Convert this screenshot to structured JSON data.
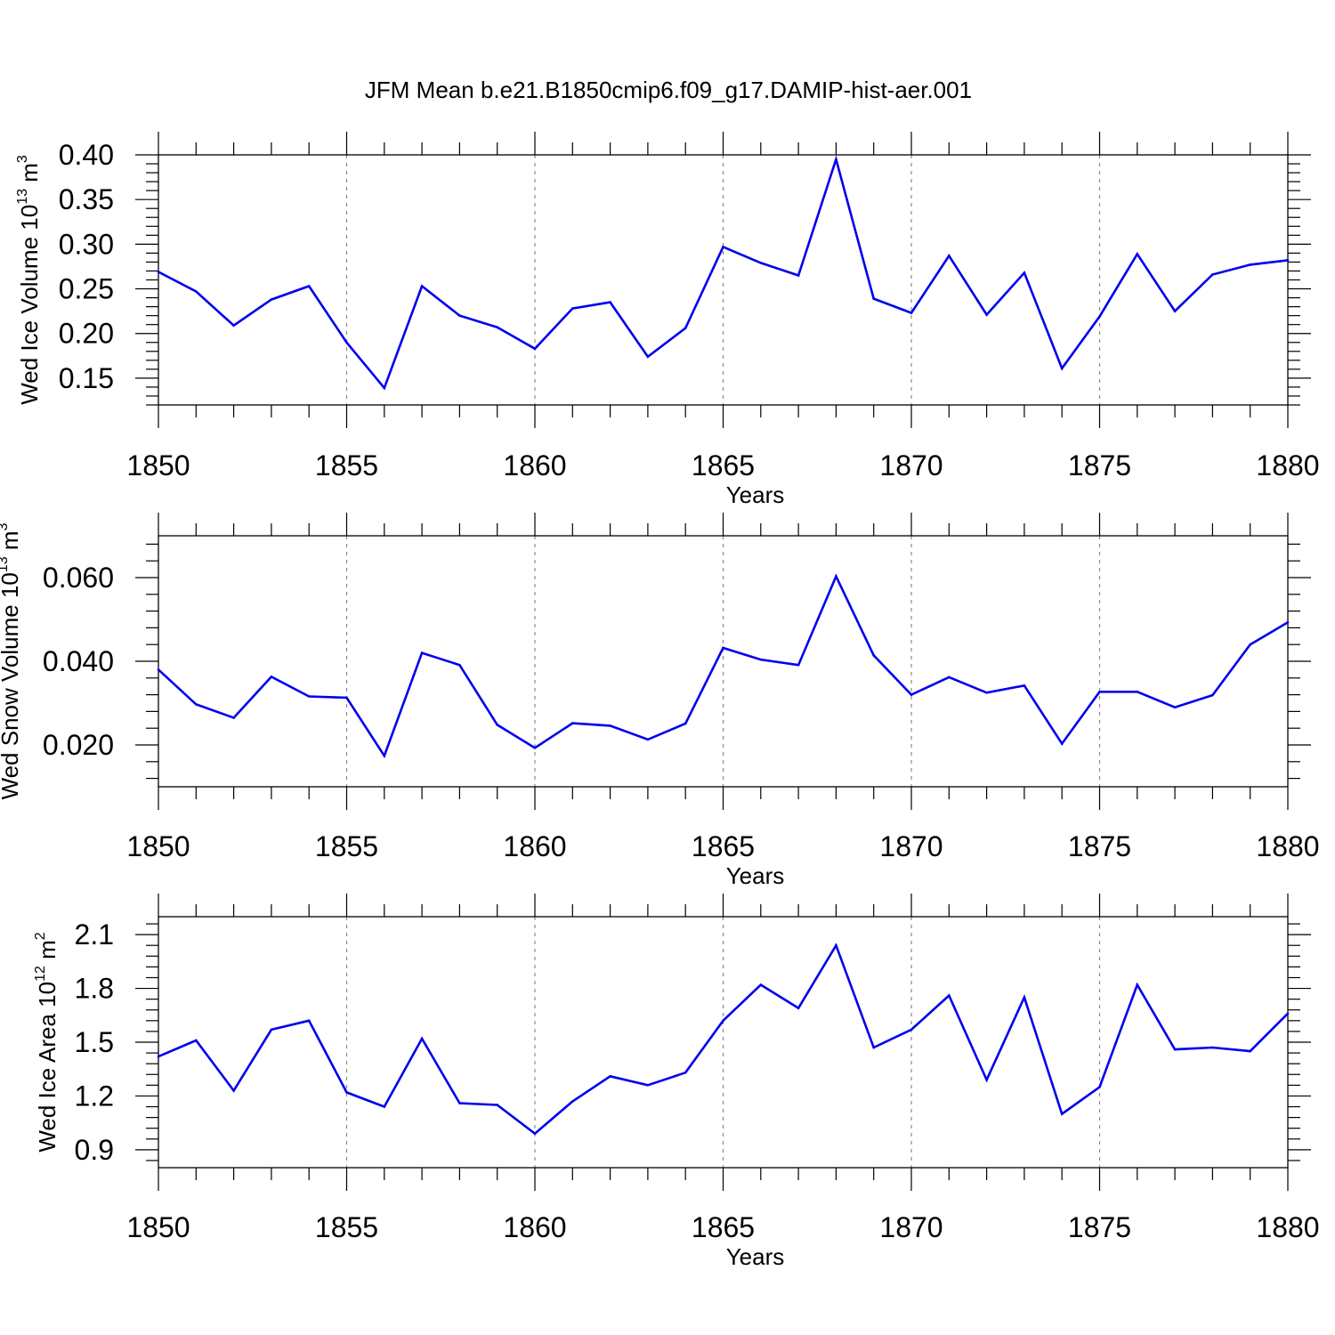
{
  "figure": {
    "title": "JFM Mean b.e21.B1850cmip6.f09_g17.DAMIP-hist-aer.001"
  },
  "chart_data": [
    {
      "type": "line",
      "xlabel": "Years",
      "ylabel_main": "Wed Ice Volume 10",
      "ylabel_sup1": "13",
      "ylabel_unit": " m",
      "ylabel_sup2": "3",
      "xlim": [
        1850,
        1880
      ],
      "ylim": [
        0.12,
        0.4
      ],
      "xticks": [
        1850,
        1855,
        1860,
        1865,
        1870,
        1875,
        1880
      ],
      "yticks": [
        0.15,
        0.2,
        0.25,
        0.3,
        0.35,
        0.4
      ],
      "ytick_labels": [
        "0.15",
        "0.20",
        "0.25",
        "0.30",
        "0.35",
        "0.40"
      ],
      "grid": "vertical dashed at major x ticks",
      "line_color": "#0000ee",
      "x": [
        1850,
        1851,
        1852,
        1853,
        1854,
        1855,
        1856,
        1857,
        1858,
        1859,
        1860,
        1861,
        1862,
        1863,
        1864,
        1865,
        1866,
        1867,
        1868,
        1869,
        1870,
        1871,
        1872,
        1873,
        1874,
        1875,
        1876,
        1877,
        1878,
        1879,
        1880
      ],
      "y": [
        0.269,
        0.247,
        0.209,
        0.238,
        0.253,
        0.19,
        0.139,
        0.253,
        0.22,
        0.207,
        0.183,
        0.228,
        0.235,
        0.174,
        0.206,
        0.297,
        0.279,
        0.265,
        0.395,
        0.239,
        0.223,
        0.287,
        0.221,
        0.268,
        0.161,
        0.219,
        0.289,
        0.225,
        0.266,
        0.277,
        0.282
      ]
    },
    {
      "type": "line",
      "xlabel": "Years",
      "ylabel_main": "Wed Snow Volume 10",
      "ylabel_sup1": "13",
      "ylabel_unit": " m",
      "ylabel_sup2": "3",
      "xlim": [
        1850,
        1880
      ],
      "ylim": [
        0.01,
        0.07
      ],
      "xticks": [
        1850,
        1855,
        1860,
        1865,
        1870,
        1875,
        1880
      ],
      "yticks": [
        0.02,
        0.04,
        0.06
      ],
      "ytick_labels": [
        "0.020",
        "0.040",
        "0.060"
      ],
      "grid": "vertical dashed at major x ticks",
      "line_color": "#0000ee",
      "x": [
        1850,
        1851,
        1852,
        1853,
        1854,
        1855,
        1856,
        1857,
        1858,
        1859,
        1860,
        1861,
        1862,
        1863,
        1864,
        1865,
        1866,
        1867,
        1868,
        1869,
        1870,
        1871,
        1872,
        1873,
        1874,
        1875,
        1876,
        1877,
        1878,
        1879,
        1880
      ],
      "y": [
        0.038,
        0.0297,
        0.0265,
        0.0363,
        0.0316,
        0.0313,
        0.0174,
        0.042,
        0.0391,
        0.0248,
        0.0193,
        0.0252,
        0.0246,
        0.0213,
        0.0251,
        0.0432,
        0.0404,
        0.0391,
        0.0603,
        0.0414,
        0.032,
        0.0362,
        0.0325,
        0.0342,
        0.0203,
        0.0327,
        0.0327,
        0.029,
        0.0319,
        0.044,
        0.0493
      ]
    },
    {
      "type": "line",
      "xlabel": "Years",
      "ylabel_main": "Wed Ice Area 10",
      "ylabel_sup1": "12",
      "ylabel_unit": " m",
      "ylabel_sup2": "2",
      "xlim": [
        1850,
        1880
      ],
      "ylim": [
        0.8,
        2.2
      ],
      "xticks": [
        1850,
        1855,
        1860,
        1865,
        1870,
        1875,
        1880
      ],
      "yticks": [
        0.9,
        1.2,
        1.5,
        1.8,
        2.1
      ],
      "ytick_labels": [
        "0.9",
        "1.2",
        "1.5",
        "1.8",
        "2.1"
      ],
      "grid": "vertical dashed at major x ticks",
      "line_color": "#0000ee",
      "x": [
        1850,
        1851,
        1852,
        1853,
        1854,
        1855,
        1856,
        1857,
        1858,
        1859,
        1860,
        1861,
        1862,
        1863,
        1864,
        1865,
        1866,
        1867,
        1868,
        1869,
        1870,
        1871,
        1872,
        1873,
        1874,
        1875,
        1876,
        1877,
        1878,
        1879,
        1880
      ],
      "y": [
        1.42,
        1.51,
        1.23,
        1.57,
        1.62,
        1.22,
        1.14,
        1.52,
        1.16,
        1.15,
        0.99,
        1.17,
        1.31,
        1.26,
        1.33,
        1.62,
        1.82,
        1.69,
        2.04,
        1.47,
        1.57,
        1.76,
        1.29,
        1.75,
        1.1,
        1.25,
        1.82,
        1.46,
        1.47,
        1.45,
        1.66
      ]
    }
  ]
}
